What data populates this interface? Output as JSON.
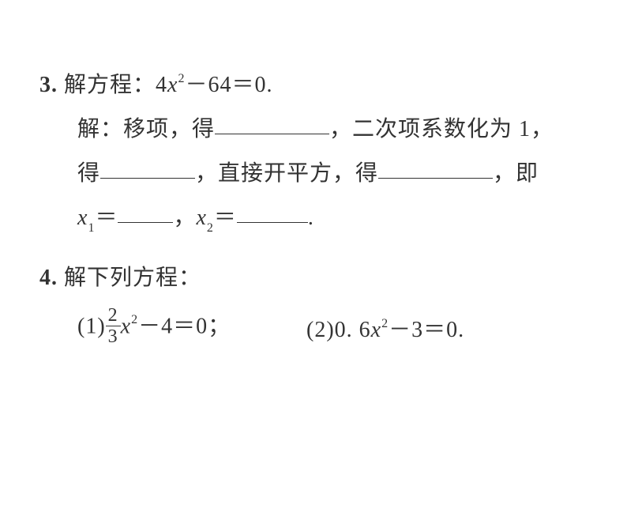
{
  "problems": {
    "p3": {
      "number": "3.",
      "stem_prefix": "解方程：",
      "equation_parts": {
        "coef": "4",
        "var": "x",
        "exp": "2",
        "mid": "－64＝0."
      },
      "sol_label": "解：",
      "step1_pre": "移项，得",
      "step1_post": "，二次项系数化为 1，",
      "step2_pre": "得",
      "step2_mid": "，直接开平方，得",
      "step2_post": "，即",
      "x1_var": "x",
      "x1_sub": "1",
      "eq": "＝",
      "comma": "，",
      "x2_var": "x",
      "x2_sub": "2",
      "period": "."
    },
    "p4": {
      "number": "4.",
      "stem": "解下列方程：",
      "sub1": {
        "label": "(1)",
        "frac_num": "2",
        "frac_den": "3",
        "var": "x",
        "exp": "2",
        "rest": "－4＝0；"
      },
      "sub2": {
        "label": "(2)",
        "coef": "0. 6",
        "var": "x",
        "exp": "2",
        "rest": "－3＝0."
      }
    }
  },
  "styling": {
    "text_color": "#333333",
    "background_color": "#ffffff",
    "font_size_main": 28,
    "font_family": "SimSun, serif"
  }
}
